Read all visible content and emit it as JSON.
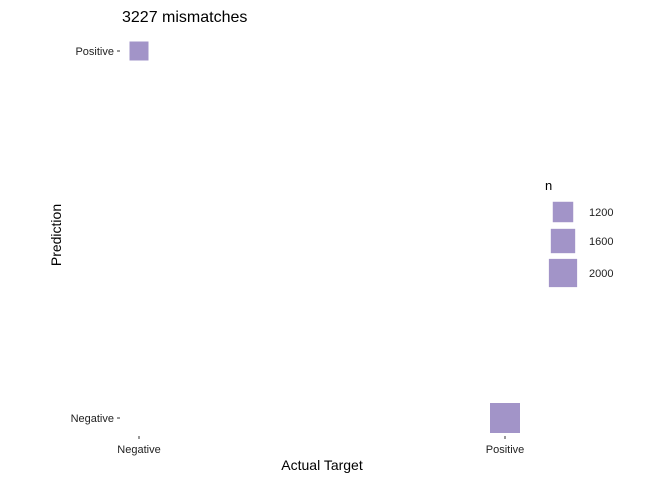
{
  "chart_data": {
    "type": "scatter",
    "title": "3227 mismatches",
    "xlabel": "Actual Target",
    "ylabel": "Prediction",
    "x_categories": [
      "Negative",
      "Positive"
    ],
    "y_categories": [
      "Negative",
      "Positive"
    ],
    "points": [
      {
        "x": "Negative",
        "y": "Positive",
        "n": 1050
      },
      {
        "x": "Positive",
        "y": "Negative",
        "n": 2180
      }
    ],
    "size_legend": {
      "title": "n",
      "breaks": [
        1200,
        1600,
        2000
      ]
    },
    "point_color": "#a294c8",
    "grid": false,
    "legend_position": "right"
  }
}
